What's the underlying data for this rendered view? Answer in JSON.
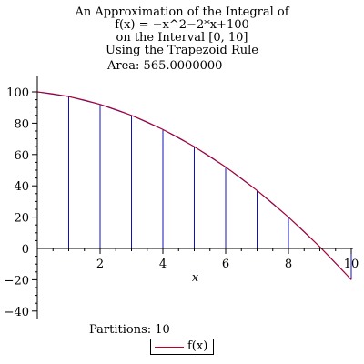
{
  "title_lines": [
    "An Approximation of the Integral of",
    "f(x) = −x^2−2*x+100",
    "on the Interval [0, 10]",
    "Using the Trapezoid Rule"
  ],
  "area_label": "Area: 565.0000000",
  "partitions_label": "Partitions: 10",
  "legend": {
    "label": "f(x)",
    "color": "#c0001e"
  },
  "chart_data": {
    "type": "line",
    "xlabel": "x",
    "ylabel": "",
    "xlim": [
      0,
      10
    ],
    "ylim": [
      -45,
      110
    ],
    "x_ticks": [
      2,
      4,
      6,
      8,
      10
    ],
    "y_ticks": [
      100,
      80,
      60,
      40,
      20,
      0,
      -20,
      -40
    ],
    "curve_color": "#c0001e",
    "trapezoid_color": "#1010c0",
    "series": [
      {
        "name": "f(x)",
        "x": [
          0,
          1,
          2,
          3,
          4,
          5,
          6,
          7,
          8,
          9,
          10
        ],
        "values": [
          100,
          97,
          92,
          85,
          76,
          65,
          52,
          37,
          20,
          1,
          -20
        ]
      }
    ],
    "trapezoids": {
      "x": [
        0,
        1,
        2,
        3,
        4,
        5,
        6,
        7,
        8,
        9,
        10
      ],
      "y": [
        100,
        97,
        92,
        85,
        76,
        65,
        52,
        37,
        20,
        1,
        -20
      ]
    }
  }
}
